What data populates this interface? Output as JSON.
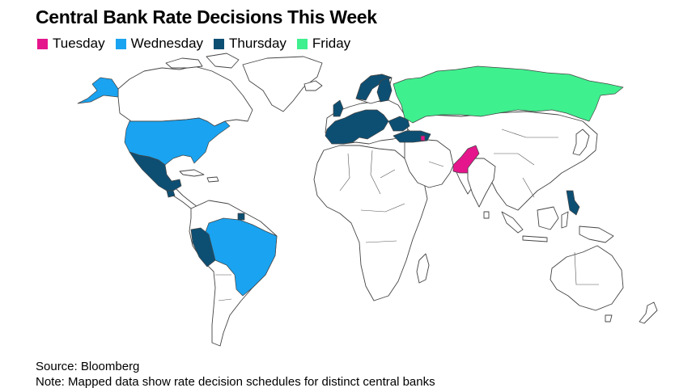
{
  "title": "Central Bank Rate Decisions This Week",
  "legend": [
    {
      "label": "Tuesday",
      "color": "#e5168c"
    },
    {
      "label": "Wednesday",
      "color": "#1aa3f0"
    },
    {
      "label": "Thursday",
      "color": "#0d4f73"
    },
    {
      "label": "Friday",
      "color": "#3ff08e"
    }
  ],
  "source": "Source: Bloomberg",
  "note": "Note: Mapped data show rate decision schedules for distinct central banks",
  "map_regions": [
    {
      "region": "Pakistan",
      "day": "Tuesday",
      "color": "#e5168c"
    },
    {
      "region": "Armenia",
      "day": "Tuesday",
      "color": "#e5168c"
    },
    {
      "region": "United States",
      "day": "Wednesday",
      "color": "#1aa3f0"
    },
    {
      "region": "Brazil",
      "day": "Wednesday",
      "color": "#1aa3f0"
    },
    {
      "region": "Mexico",
      "day": "Thursday",
      "color": "#0d4f73"
    },
    {
      "region": "Guatemala",
      "day": "Thursday",
      "color": "#0d4f73"
    },
    {
      "region": "Peru",
      "day": "Thursday",
      "color": "#0d4f73"
    },
    {
      "region": "Suriname",
      "day": "Thursday",
      "color": "#0d4f73"
    },
    {
      "region": "Euro Area",
      "day": "Thursday",
      "color": "#0d4f73"
    },
    {
      "region": "United Kingdom",
      "day": "Thursday",
      "color": "#0d4f73"
    },
    {
      "region": "Norway",
      "day": "Thursday",
      "color": "#0d4f73"
    },
    {
      "region": "Ukraine",
      "day": "Thursday",
      "color": "#0d4f73"
    },
    {
      "region": "Turkey",
      "day": "Thursday",
      "color": "#0d4f73"
    },
    {
      "region": "Philippines",
      "day": "Thursday",
      "color": "#0d4f73"
    },
    {
      "region": "Russia",
      "day": "Friday",
      "color": "#3ff08e"
    }
  ]
}
